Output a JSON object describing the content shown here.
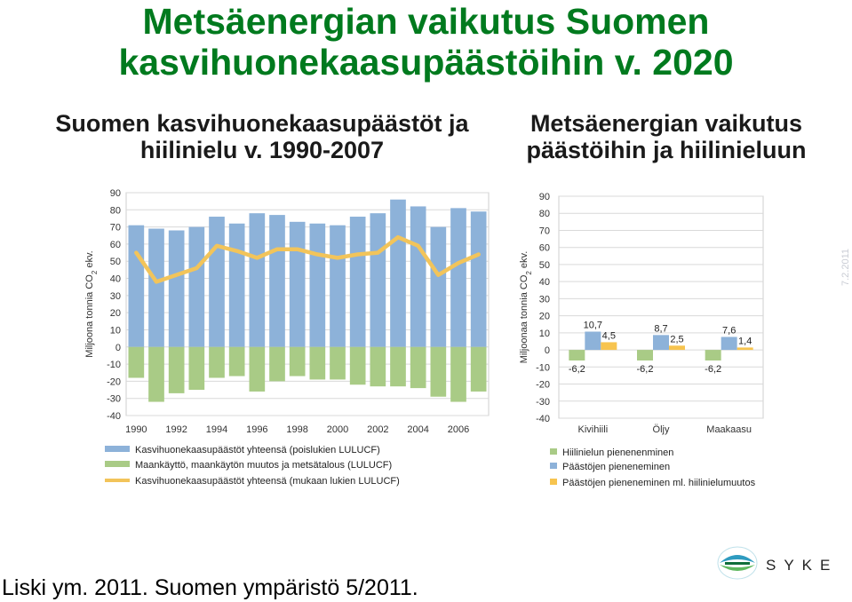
{
  "header": {
    "title_line1": "Metsäenergian vaikutus Suomen",
    "title_line2": "kasvihuonekaasupäästöihin v. 2020",
    "left_subtitle_line1": "Suomen kasvihuonekaasupäästöt ja",
    "left_subtitle_line2": "hiilinielu v. 1990-2007",
    "right_subtitle_line1": "Metsäenergian vaikutus",
    "right_subtitle_line2": "päästöihin ja hiilinieluun"
  },
  "colors": {
    "title": "#007a1e",
    "blue": "#8db2d9",
    "green": "#a9cb86",
    "yellow": "#f7c44f",
    "line": "#f2c45a"
  },
  "chart_data": [
    {
      "type": "bar",
      "ylabel": "Miljoona tonnia CO2 ekv.",
      "ylim": [
        -40,
        90
      ],
      "yticks": [
        90,
        80,
        70,
        60,
        50,
        40,
        30,
        20,
        10,
        0,
        -10,
        -20,
        -30,
        -40
      ],
      "x": [
        1990,
        1991,
        1992,
        1993,
        1994,
        1995,
        1996,
        1997,
        1998,
        1999,
        2000,
        2001,
        2002,
        2003,
        2004,
        2005,
        2006,
        2007
      ],
      "xtick_labels": [
        "1990",
        "1992",
        "1994",
        "1996",
        "1998",
        "2000",
        "2002",
        "2004",
        "2006"
      ],
      "series": [
        {
          "name": "Kasvihuonekaasupäästöt yhteensä (poislukien LULUCF)",
          "kind": "bar",
          "color": "#8db2d9",
          "values": [
            71,
            69,
            68,
            70,
            76,
            72,
            78,
            77,
            73,
            72,
            71,
            76,
            78,
            86,
            82,
            70,
            81,
            79
          ]
        },
        {
          "name": "Maankäyttö, maankäytön muutos ja metsätalous (LULUCF)",
          "kind": "bar",
          "color": "#a9cb86",
          "values": [
            -18,
            -32,
            -27,
            -25,
            -18,
            -17,
            -26,
            -20,
            -17,
            -19,
            -19,
            -22,
            -23,
            -23,
            -24,
            -29,
            -32,
            -26
          ]
        },
        {
          "name": "Kasvihuonekaasupäästöt yhteensä (mukaan lukien LULUCF)",
          "kind": "line",
          "color": "#f2c45a",
          "values": [
            55,
            38,
            42,
            46,
            59,
            56,
            52,
            57,
            57,
            54,
            52,
            54,
            55,
            64,
            59,
            42,
            49,
            54
          ]
        }
      ]
    },
    {
      "type": "bar",
      "ylabel": "Miljoonaa tonnia CO2 ekv.",
      "ylim": [
        -40,
        90
      ],
      "yticks": [
        90,
        80,
        70,
        60,
        50,
        40,
        30,
        20,
        10,
        0,
        -10,
        -20,
        -30,
        -40
      ],
      "categories": [
        "Kivihiili",
        "Öljy",
        "Maakaasu"
      ],
      "series": [
        {
          "name": "Hiilinielun pienenenminen",
          "color": "#a9cb86",
          "values": [
            -6.2,
            -6.2,
            -6.2
          ],
          "labels": [
            "-6,2",
            "-6,2",
            "-6,2"
          ]
        },
        {
          "name": "Päästöjen pieneneminen",
          "color": "#8db2d9",
          "values": [
            10.7,
            8.7,
            7.6
          ],
          "labels": [
            "10,7",
            "8,7",
            "7,6"
          ]
        },
        {
          "name": "Päästöjen pieneneminen ml. hiilinielumuutos",
          "color": "#f7c44f",
          "values": [
            4.5,
            2.5,
            1.4
          ],
          "labels": [
            "4,5",
            "2,5",
            "1,4"
          ]
        }
      ]
    }
  ],
  "footer": {
    "source": "Liski ym. 2011. Suomen ympäristö 5/2011.",
    "date": "7.2.2011",
    "logo_text": "SYKE"
  }
}
